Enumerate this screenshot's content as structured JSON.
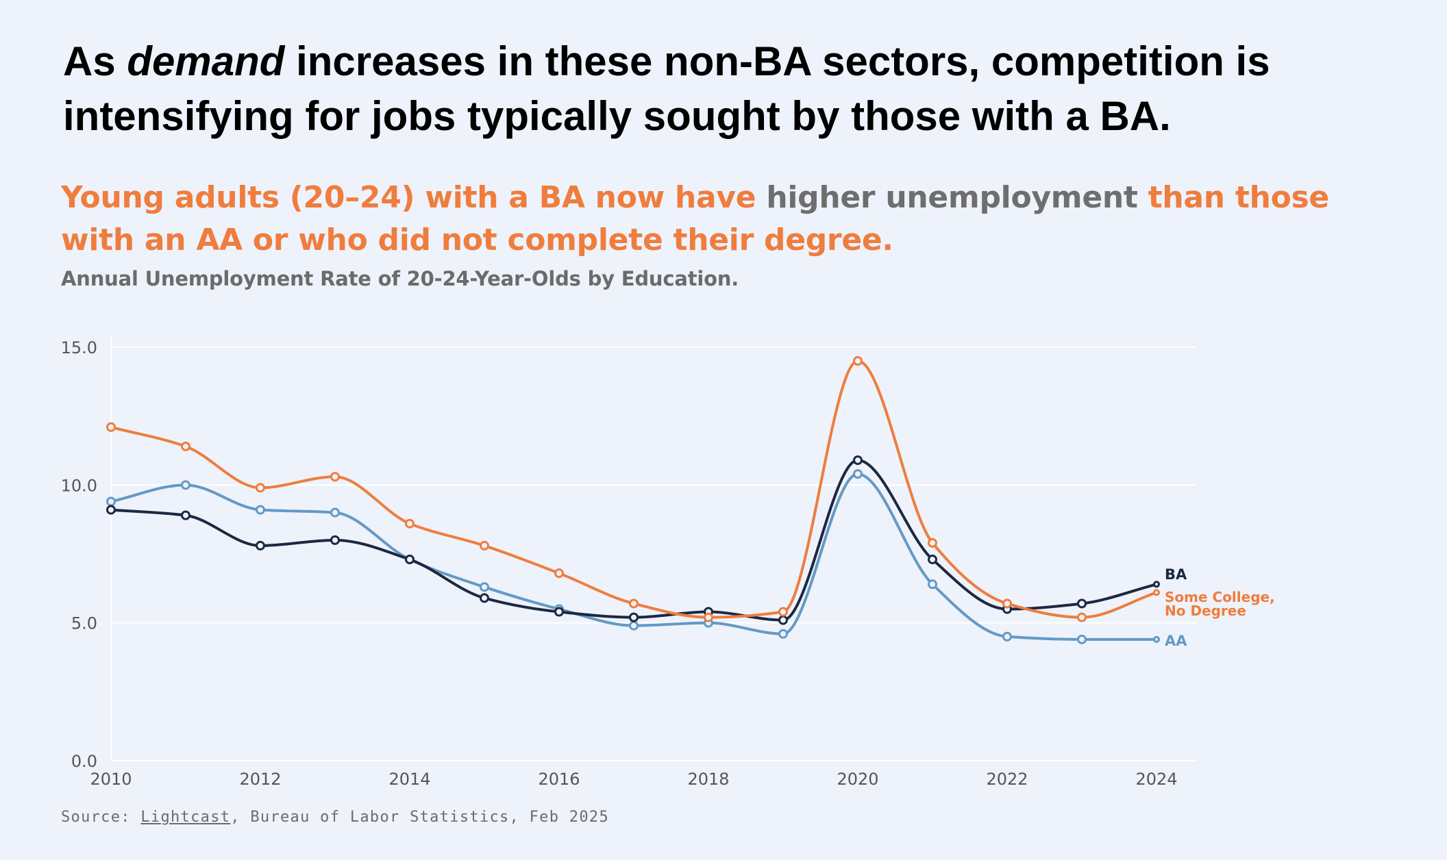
{
  "headline": {
    "part1": "As ",
    "emphasis": "demand",
    "part2": " increases in these non-BA sectors, competition is intensifying for jobs typically sought by those with a BA."
  },
  "subhead": {
    "part1": "Young adults (20–24) with a BA now have ",
    "highlight": "higher unemployment",
    "part2": " than those with an AA or who did not complete their degree."
  },
  "source": {
    "prefix": "Source: ",
    "link": "Lightcast",
    "suffix": ", Bureau of Labor Statistics, Feb 2025"
  },
  "chart_data": {
    "type": "line",
    "title": "Annual Unemployment Rate of 20-24-Year-Olds by Education.",
    "xlabel": "",
    "ylabel": "",
    "x": [
      2010,
      2011,
      2012,
      2013,
      2014,
      2015,
      2016,
      2017,
      2018,
      2019,
      2020,
      2021,
      2022,
      2023,
      2024
    ],
    "xticks": [
      "2010",
      "2012",
      "2014",
      "2016",
      "2018",
      "2020",
      "2022",
      "2024"
    ],
    "yticks": [
      "0.0",
      "5.0",
      "10.0",
      "15.0"
    ],
    "ylim": [
      0,
      15
    ],
    "xlim": [
      2010,
      2024
    ],
    "grid": true,
    "legend": "direct labels at line ends",
    "series": [
      {
        "name": "BA",
        "color": "#1c2841",
        "values": [
          9.1,
          8.9,
          7.8,
          8.0,
          7.3,
          5.9,
          5.4,
          5.2,
          5.4,
          5.1,
          10.9,
          7.3,
          5.5,
          5.7,
          6.4
        ]
      },
      {
        "name": "Some College, No Degree",
        "color": "#ef7d3d",
        "values": [
          12.1,
          11.4,
          9.9,
          10.3,
          8.6,
          7.8,
          6.8,
          5.7,
          5.2,
          5.4,
          14.5,
          7.9,
          5.7,
          5.2,
          6.1
        ]
      },
      {
        "name": "AA",
        "color": "#6499c4",
        "values": [
          9.4,
          10.0,
          9.1,
          9.0,
          7.3,
          6.3,
          5.5,
          4.9,
          5.0,
          4.6,
          10.4,
          6.4,
          4.5,
          4.4,
          4.4
        ]
      }
    ]
  }
}
